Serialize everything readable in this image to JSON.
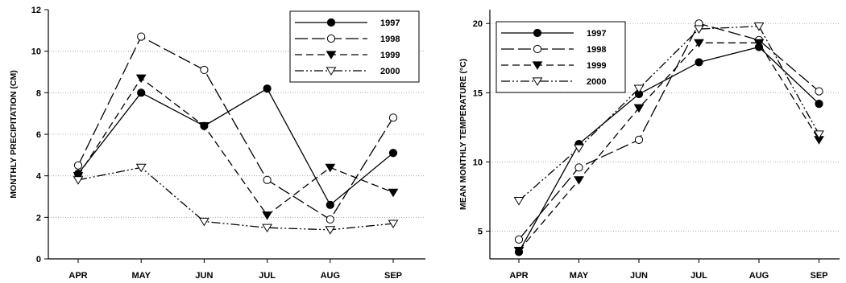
{
  "chart_data": [
    {
      "type": "line",
      "categories": [
        "APR",
        "MAY",
        "JUN",
        "JUL",
        "AUG",
        "SEP"
      ],
      "ylabel": "MONTHLY PRECIPITATION (CM)",
      "ylim": [
        0,
        12
      ],
      "yticks": [
        "0",
        "2",
        "4",
        "6",
        "8",
        "10",
        "12"
      ],
      "grid": true,
      "legend_position": "top-right",
      "series": [
        {
          "name": "1997",
          "marker": "filled-circle",
          "line": "solid",
          "values": [
            4.1,
            8.0,
            6.4,
            8.2,
            2.6,
            5.1
          ]
        },
        {
          "name": "1998",
          "marker": "open-circle",
          "line": "long-dash",
          "values": [
            4.5,
            10.7,
            9.1,
            3.8,
            1.9,
            6.8
          ]
        },
        {
          "name": "1999",
          "marker": "filled-triangle-down",
          "line": "dash",
          "values": [
            4.0,
            8.7,
            6.4,
            2.1,
            4.4,
            3.2
          ]
        },
        {
          "name": "2000",
          "marker": "open-triangle-down",
          "line": "dash-dot-dot",
          "values": [
            3.8,
            4.4,
            1.8,
            1.5,
            1.4,
            1.7
          ]
        }
      ]
    },
    {
      "type": "line",
      "categories": [
        "APR",
        "MAY",
        "JUN",
        "JUL",
        "AUG",
        "SEP"
      ],
      "ylabel": "MEAN MONTHLY TEMPERATURE (°C)",
      "ylim": [
        3,
        21
      ],
      "yticks": [
        "5",
        "10",
        "15",
        "20"
      ],
      "grid": true,
      "legend_position": "top-left",
      "series": [
        {
          "name": "1997",
          "marker": "filled-circle",
          "line": "solid",
          "values": [
            3.5,
            11.3,
            14.9,
            17.2,
            18.3,
            14.2
          ]
        },
        {
          "name": "1998",
          "marker": "open-circle",
          "line": "long-dash",
          "values": [
            4.4,
            9.6,
            11.6,
            20.0,
            18.8,
            15.1
          ]
        },
        {
          "name": "1999",
          "marker": "filled-triangle-down",
          "line": "dash",
          "values": [
            3.6,
            8.7,
            13.9,
            18.6,
            18.6,
            11.6
          ]
        },
        {
          "name": "2000",
          "marker": "open-triangle-down",
          "line": "dash-dot-dot",
          "values": [
            7.2,
            11.0,
            15.3,
            19.6,
            19.8,
            12.0
          ]
        }
      ]
    }
  ]
}
